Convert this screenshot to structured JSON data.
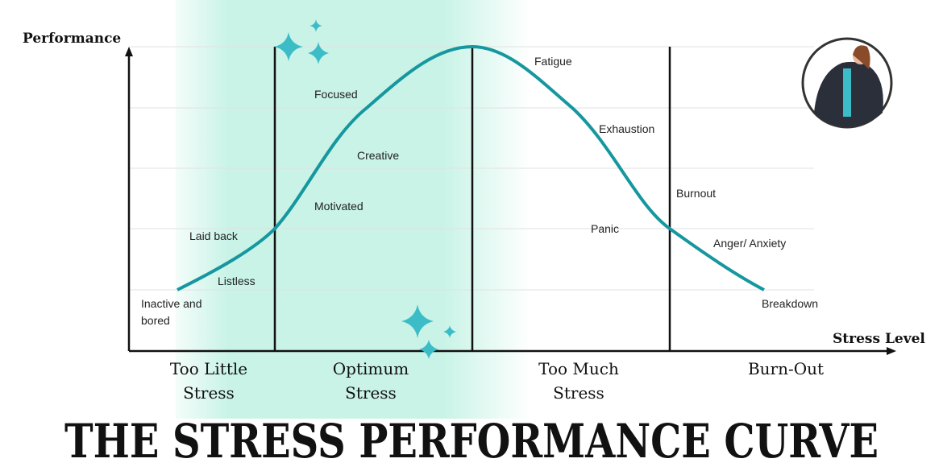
{
  "title": "THE STRESS PERFORMANCE CURVE",
  "y_axis_label": "Performance",
  "x_axis_label": "Stress Level",
  "zones": [
    {
      "lines": [
        "Too Little",
        "Stress"
      ]
    },
    {
      "lines": [
        "Optimum",
        "Stress"
      ]
    },
    {
      "lines": [
        "Too Much",
        "Stress"
      ]
    },
    {
      "lines": [
        "Burn-Out"
      ]
    }
  ],
  "curve_labels": [
    {
      "lines": [
        "Inactive and",
        "bored"
      ]
    },
    {
      "lines": [
        "Listless"
      ]
    },
    {
      "lines": [
        "Laid back"
      ]
    },
    {
      "lines": [
        "Motivated"
      ]
    },
    {
      "lines": [
        "Creative"
      ]
    },
    {
      "lines": [
        "Focused"
      ]
    },
    {
      "lines": [
        "Fatigue"
      ]
    },
    {
      "lines": [
        "Exhaustion"
      ]
    },
    {
      "lines": [
        "Panic"
      ]
    },
    {
      "lines": [
        "Burnout"
      ]
    },
    {
      "lines": [
        "Anger/ Anxiety"
      ]
    },
    {
      "lines": [
        "Breakdown"
      ]
    }
  ]
}
